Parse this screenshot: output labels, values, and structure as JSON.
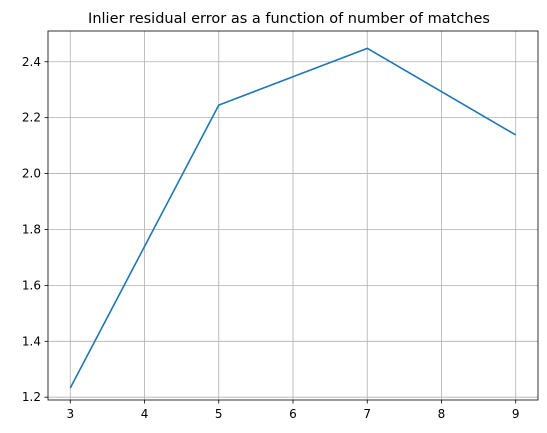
{
  "chart_data": {
    "type": "line",
    "title": "Inlier residual error as a function of number of matches",
    "xlabel": "",
    "ylabel": "",
    "x": [
      3,
      5,
      7,
      9
    ],
    "series": [
      {
        "values": [
          1.233,
          2.245,
          2.448,
          2.138
        ],
        "color": "#1f77b4"
      }
    ],
    "xlim": [
      2.7,
      9.3
    ],
    "ylim": [
      1.19,
      2.51
    ],
    "xticks": [
      3,
      4,
      5,
      6,
      7,
      8,
      9
    ],
    "xtick_labels": [
      "3",
      "4",
      "5",
      "6",
      "7",
      "8",
      "9"
    ],
    "yticks": [
      1.2,
      1.4,
      1.6,
      1.8,
      2.0,
      2.2,
      2.4
    ],
    "ytick_labels": [
      "1.2",
      "1.4",
      "1.6",
      "1.8",
      "2.0",
      "2.2",
      "2.4"
    ],
    "grid": true,
    "grid_color": "#b0b0b0"
  }
}
